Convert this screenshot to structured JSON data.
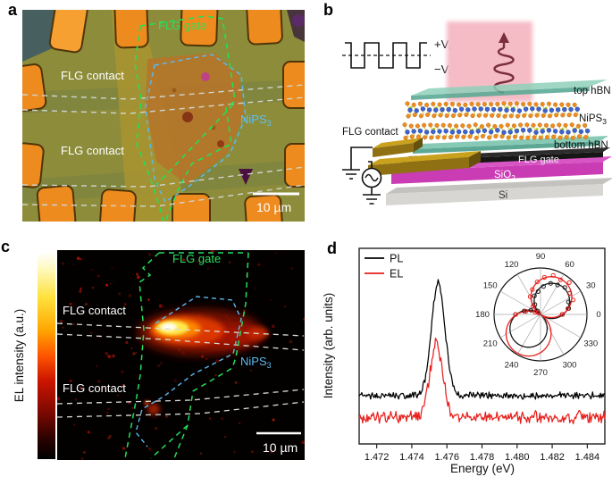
{
  "figure": {
    "panel_a": {
      "label": "a",
      "flg_gate": "FLG gate",
      "flg_contact_top": "FLG contact",
      "flg_contact_bottom": "FLG contact",
      "nips3": {
        "main": "NiPS",
        "sub": "3"
      },
      "scalebar": "10 µm"
    },
    "panel_b": {
      "label": "b",
      "plus_vg": {
        "main": "+V",
        "sub": "G"
      },
      "minus_vg": {
        "main": "−V",
        "sub": "G"
      },
      "top_hbn": "top hBN",
      "nips3": {
        "main": "NiPS",
        "sub": "3"
      },
      "bottom_hbn": "bottom hBN",
      "flg_contact": "FLG contact",
      "flg_gate": "FLG gate",
      "sio2": {
        "main": "SiO",
        "sub": "2"
      },
      "si": "Si"
    },
    "panel_c": {
      "label": "c",
      "colorbar_label": "EL intensity (a.u.)",
      "flg_gate": "FLG gate",
      "flg_contact_top": "FLG contact",
      "flg_contact_bottom": "FLG contact",
      "nips3": {
        "main": "NiPS",
        "sub": "3"
      },
      "scalebar": "10 µm"
    },
    "panel_d": {
      "label": "d",
      "xlabel": "Energy (eV)",
      "ylabel": "Intensity (arb. units)",
      "legend": [
        {
          "name": "PL",
          "color": "#000000"
        },
        {
          "name": "EL",
          "color": "#e8211d"
        }
      ]
    }
  },
  "colors": {
    "pl": "#000000",
    "el": "#e8211d",
    "gate_dash_green": "#23df59",
    "nips3_dash_blue": "#5cb8ea",
    "contact_dash_gray": "#cfd4cf",
    "beam_pink": "#f5bcc6",
    "hbn_teal": "#6fbfa9",
    "sio2_magenta": "#c93cb4",
    "si_gray": "#d8d6d2",
    "gold": "#c9a11d",
    "pad_orange": "#ee8b1e",
    "olive_background": "#8d8c3b"
  },
  "chart_data": [
    {
      "type": "line",
      "panel": "d",
      "title": "",
      "xlabel": "Energy (eV)",
      "ylabel": "Intensity (arb. units)",
      "xlim": [
        1.471,
        1.485
      ],
      "xticks": [
        1.472,
        1.474,
        1.476,
        1.478,
        1.48,
        1.482,
        1.484
      ],
      "grid": false,
      "legend_position": "top-left",
      "series": [
        {
          "name": "PL",
          "color": "#000000",
          "baseline_frac": 0.247,
          "noise_frac": 0.013,
          "peak": {
            "center_eV": 1.4755,
            "height_frac": 0.578,
            "fwhm_eV": 0.0009
          }
        },
        {
          "name": "EL",
          "color": "#e8211d",
          "baseline_frac": 0.137,
          "noise_frac": 0.024,
          "peak": {
            "center_eV": 1.4754,
            "height_frac": 0.377,
            "fwhm_eV": 0.00085
          }
        }
      ]
    },
    {
      "type": "polar",
      "panel": "d-inset",
      "pattern": "dipole r = amp*|cos(theta - axis)|",
      "angle_ticks_deg": [
        0,
        30,
        60,
        90,
        120,
        150,
        180,
        210,
        240,
        270,
        300,
        330
      ],
      "series": [
        {
          "name": "PL",
          "color": "#1a1a1a",
          "lobe_axis_deg": 50,
          "upper_lobe_amp": 0.76,
          "lower_lobe_amp": 0.8,
          "marker": "open-circle",
          "marker_step_deg": 12
        },
        {
          "name": "EL",
          "color": "#e8211d",
          "lobe_axis_deg": 58,
          "upper_lobe_amp": 0.88,
          "lower_lobe_amp": 0.97,
          "marker": "open-circle",
          "marker_step_deg": 12
        }
      ]
    }
  ]
}
